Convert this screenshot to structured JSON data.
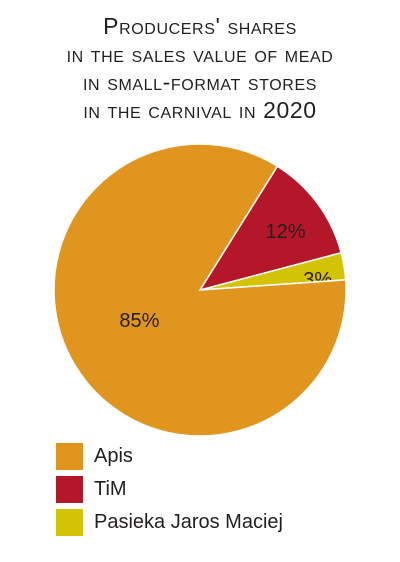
{
  "chart_data": {
    "type": "pie",
    "title": [
      "Producers' shares",
      "in the sales value of mead",
      "in small-format stores",
      "in the carnival in 2020"
    ],
    "series": [
      {
        "name": "Apis",
        "value": 85,
        "label": "85%",
        "color": "#df951e"
      },
      {
        "name": "TiM",
        "value": 12,
        "label": "12%",
        "color": "#b4172a"
      },
      {
        "name": "Pasieka Jaros Maciej",
        "value": 3,
        "label": "3%",
        "color": "#d2c304"
      }
    ],
    "legend_position": "bottom-left"
  }
}
